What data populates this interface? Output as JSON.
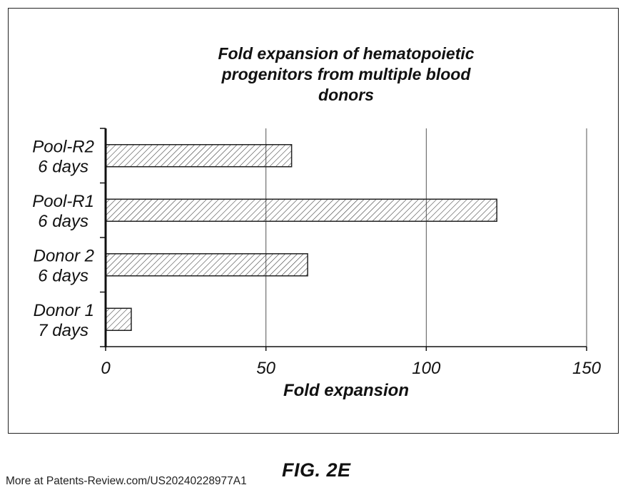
{
  "figure_label": "FIG. 2E",
  "footer_note": "More at Patents-Review.com/US20240228977A1",
  "chart_data": {
    "type": "bar",
    "orientation": "horizontal",
    "title_lines": [
      "Fold expansion of hematopoietic",
      "progenitors from multiple blood",
      "donors"
    ],
    "xlabel": "Fold expansion",
    "ylabel": "",
    "xlim": [
      0,
      150
    ],
    "xticks": [
      "0",
      "50",
      "100",
      "150"
    ],
    "xtick_values": [
      0,
      50,
      100,
      150
    ],
    "grid": "vertical",
    "legend": "none",
    "fill": "diagonal-hatch",
    "categories": [
      {
        "line1": "Pool-R2",
        "line2": "6 days"
      },
      {
        "line1": "Pool-R1",
        "line2": "6 days"
      },
      {
        "line1": "Donor 2",
        "line2": "6 days"
      },
      {
        "line1": "Donor 1",
        "line2": "7 days"
      }
    ],
    "values": [
      58,
      122,
      63,
      8
    ]
  }
}
